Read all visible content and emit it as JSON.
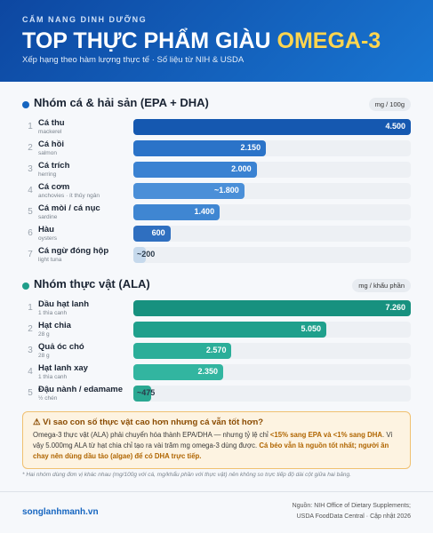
{
  "header": {
    "kicker": "CẨM NANG DINH DƯỠNG",
    "title": "TOP THỰC PHẨM GIÀU",
    "title_highlight": "OMEGA-3",
    "subtitle": "Xếp hạng theo hàm lượng thực tế · Số liệu từ NIH & USDA"
  },
  "chart_data": [
    {
      "type": "bar",
      "title": "Nhóm cá & hải sản (EPA + DHA)",
      "unit": "mg / 100g",
      "dot_color": "#1565c0",
      "ranks": [
        1,
        2,
        3,
        4,
        5,
        6,
        7
      ],
      "categories": [
        "Cá thu",
        "Cá hồi",
        "Cá trích",
        "Cá cơm",
        "Cá mòi / cá nục",
        "Hàu",
        "Cá ngừ đóng hộp"
      ],
      "notes": [
        "mackerel",
        "salmon",
        "herring",
        "anchovies · ít thủy ngân",
        "sardine",
        "oysters",
        "light tuna"
      ],
      "values": [
        4500,
        2150,
        2000,
        1800,
        1400,
        600,
        200
      ],
      "value_labels": [
        "4.500",
        "2.150",
        "2.000",
        "~1.800",
        "1.400",
        "600",
        "~200"
      ],
      "colors": [
        "#1558b0",
        "#2b73c8",
        "#3a82d2",
        "#4a8fd8",
        "#3f86d2",
        "#2f6fc0",
        "#c6d9ec"
      ]
    },
    {
      "type": "bar",
      "title": "Nhóm thực vật (ALA)",
      "unit": "mg / khẩu phần",
      "dot_color": "#1f9e8a",
      "ranks": [
        1,
        2,
        3,
        4,
        5
      ],
      "categories": [
        "Dầu hạt lanh",
        "Hạt chia",
        "Quả óc chó",
        "Hạt lanh xay",
        "Đậu nành / edamame"
      ],
      "notes": [
        "1 thìa canh",
        "28 g",
        "28 g",
        "1 thìa canh",
        "½ chén"
      ],
      "values": [
        7260,
        5050,
        2570,
        2350,
        475
      ],
      "value_labels": [
        "7.260",
        "5.050",
        "2.570",
        "2.350",
        "~475"
      ],
      "colors": [
        "#17917f",
        "#1fa08c",
        "#2bae99",
        "#32b5a0",
        "#2aa892"
      ]
    }
  ],
  "callout": {
    "title": "⚠ Vì sao con số thực vật cao hơn nhưng cá vẫn tốt hơn?",
    "body": [
      "Omega-3 thực vật (ALA) phải chuyển hóa thành EPA/DHA — nhưng tỷ lệ chỉ ",
      "<15% sang EPA và <1% sang DHA",
      ". Vì vậy 5.000mg ALA từ hạt chia chỉ tạo ra vài trăm mg omega-3 dùng được. ",
      "Cá béo vẫn là nguồn tốt nhất; người ăn chay nên dùng dầu tảo (algae) để có DHA trực tiếp."
    ]
  },
  "footnote": "* Hai nhóm dùng đơn vị khác nhau (mg/100g với cá, mg/khẩu phần với thực vật) nên không so trực tiếp độ dài cột giữa hai bảng.",
  "footer": {
    "site": "songlanhmanh.vn",
    "source_line1": "Nguồn: NIH Office of Dietary Supplements;",
    "source_line2": "USDA FoodData Central · Cập nhật 2026"
  }
}
